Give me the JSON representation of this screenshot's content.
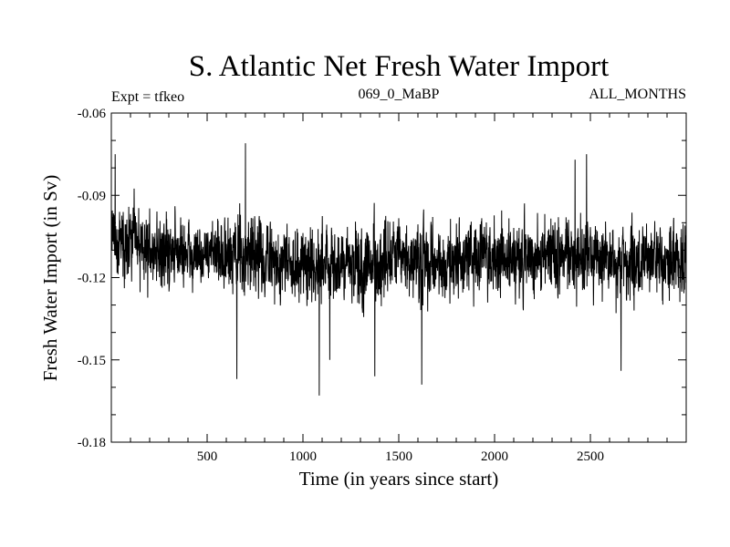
{
  "chart_data": {
    "type": "line",
    "title": "S. Atlantic Net Fresh Water Import",
    "header_left": "Expt = tfkeo",
    "header_center": "069_0_MaBP",
    "header_right": "ALL_MONTHS",
    "xlabel": "Time (in years since start)",
    "ylabel": "Fresh Water Import (in Sv)",
    "xlim": [
      0,
      3000
    ],
    "ylim": [
      -0.18,
      -0.06
    ],
    "x_ticks": [
      500,
      1000,
      1500,
      2000,
      2500
    ],
    "x_tick_labels": [
      "500",
      "1000",
      "1500",
      "2000",
      "2500"
    ],
    "y_ticks": [
      -0.18,
      -0.15,
      -0.12,
      -0.09,
      -0.06
    ],
    "y_tick_labels": [
      "-0.18",
      "-0.15",
      "-0.12",
      "-0.09",
      "-0.06"
    ],
    "grid": false,
    "series": [
      {
        "color": "#000000",
        "x": [
          0,
          100,
          200,
          300,
          400,
          500,
          600,
          700,
          800,
          900,
          1000,
          1100,
          1200,
          1300,
          1400,
          1500,
          1600,
          1700,
          1800,
          1900,
          2000,
          2100,
          2200,
          2300,
          2400,
          2500,
          2600,
          2700,
          2800,
          2900,
          3000
        ],
        "mean": [
          -0.106,
          -0.107,
          -0.109,
          -0.111,
          -0.111,
          -0.111,
          -0.112,
          -0.112,
          -0.113,
          -0.114,
          -0.114,
          -0.115,
          -0.116,
          -0.116,
          -0.115,
          -0.114,
          -0.115,
          -0.116,
          -0.115,
          -0.111,
          -0.112,
          -0.114,
          -0.112,
          -0.111,
          -0.113,
          -0.112,
          -0.114,
          -0.115,
          -0.115,
          -0.113,
          -0.113
        ],
        "upper": [
          -0.076,
          -0.081,
          -0.085,
          -0.086,
          -0.088,
          -0.09,
          -0.088,
          -0.076,
          -0.087,
          -0.09,
          -0.089,
          -0.09,
          -0.089,
          -0.088,
          -0.086,
          -0.087,
          -0.086,
          -0.087,
          -0.086,
          -0.085,
          -0.086,
          -0.086,
          -0.085,
          -0.082,
          -0.084,
          -0.085,
          -0.084,
          -0.085,
          -0.088,
          -0.086,
          -0.084
        ],
        "lower": [
          -0.13,
          -0.135,
          -0.136,
          -0.14,
          -0.139,
          -0.14,
          -0.143,
          -0.146,
          -0.142,
          -0.143,
          -0.148,
          -0.156,
          -0.146,
          -0.147,
          -0.154,
          -0.148,
          -0.152,
          -0.145,
          -0.14,
          -0.14,
          -0.142,
          -0.14,
          -0.141,
          -0.143,
          -0.14,
          -0.146,
          -0.14,
          -0.145,
          -0.14,
          -0.143,
          -0.141
        ],
        "highlights": [
          {
            "x": 20,
            "y": -0.075
          },
          {
            "x": 700,
            "y": -0.071
          },
          {
            "x": 655,
            "y": -0.157
          },
          {
            "x": 1085,
            "y": -0.163
          },
          {
            "x": 1140,
            "y": -0.15
          },
          {
            "x": 1375,
            "y": -0.156
          },
          {
            "x": 1620,
            "y": -0.159
          },
          {
            "x": 2420,
            "y": -0.077
          },
          {
            "x": 2480,
            "y": -0.075
          },
          {
            "x": 2660,
            "y": -0.154
          }
        ]
      }
    ]
  }
}
